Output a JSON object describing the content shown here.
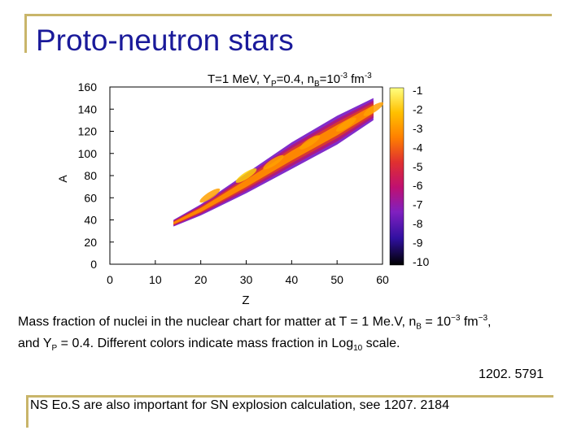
{
  "slide": {
    "title": "Proto-neutron stars",
    "caption": {
      "line1_a": "Mass fraction of nuclei in the nuclear chart for matter at T = 1 Me.V, n",
      "line1_sub": "B",
      "line1_b": " = 10",
      "line1_sup1": "−3",
      "line1_c": " fm",
      "line1_sup2": "−3",
      "line1_d": ",",
      "line2_a": "and Y",
      "line2_sub": "P",
      "line2_b": " = 0.4. Different colors indicate mass fraction in Log",
      "line2_sub2": "10",
      "line2_c": " scale."
    },
    "arxiv_ref": "1202. 5791",
    "footer_note": "NS Eo.S are also important for SN explosion calculation, see 1207. 2184"
  },
  "chart_data": {
    "type": "heatmap",
    "title": {
      "a": "T=1 MeV, Y",
      "sub": "P",
      "b": "=0.4, n",
      "sub2": "B",
      "c": "=10",
      "sup": "-3",
      "d": " fm",
      "sup2": "-3"
    },
    "xlabel": "Z",
    "ylabel": "A",
    "xlim": [
      0,
      60
    ],
    "ylim": [
      0,
      160
    ],
    "x_ticks": [
      "0",
      "10",
      "20",
      "30",
      "40",
      "50",
      "60"
    ],
    "y_ticks": [
      "0",
      "20",
      "40",
      "60",
      "80",
      "100",
      "120",
      "140",
      "160"
    ],
    "colorbar": {
      "label": "Log10 mass fraction",
      "range": [
        -10,
        -1
      ],
      "ticks": [
        "-1",
        "-2",
        "-3",
        "-4",
        "-5",
        "-6",
        "-7",
        "-8",
        "-9",
        "-10"
      ],
      "colors": [
        "#ffff80",
        "#ffc000",
        "#ff8000",
        "#e03030",
        "#c01070",
        "#8020c0",
        "#3010a0",
        "#000000"
      ]
    },
    "band": {
      "description_points": [
        {
          "z": 14,
          "a_low": 34,
          "a_high": 40
        },
        {
          "z": 20,
          "a_low": 44,
          "a_high": 54
        },
        {
          "z": 30,
          "a_low": 64,
          "a_high": 82
        },
        {
          "z": 40,
          "a_low": 86,
          "a_high": 110
        },
        {
          "z": 50,
          "a_low": 108,
          "a_high": 134
        },
        {
          "z": 58,
          "a_low": 130,
          "a_high": 150
        }
      ],
      "peak_ridge": [
        {
          "z": 22,
          "a": 62,
          "level": -3
        },
        {
          "z": 30,
          "a": 80,
          "level": -2.2
        },
        {
          "z": 36,
          "a": 92,
          "level": -2.6
        },
        {
          "z": 44,
          "a": 110,
          "level": -2.8
        },
        {
          "z": 52,
          "a": 126,
          "level": -3.2
        },
        {
          "z": 58,
          "a": 140,
          "level": -3.5
        }
      ]
    }
  }
}
